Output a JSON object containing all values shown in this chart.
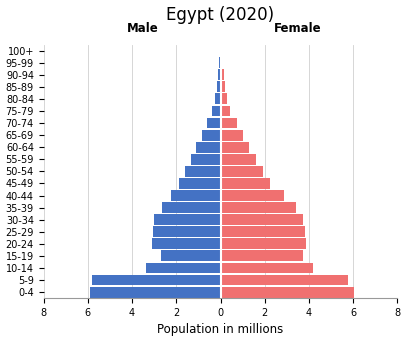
{
  "title": "Egypt (2020)",
  "xlabel": "Population in millions",
  "age_groups": [
    "0-4",
    "5-9",
    "10-14",
    "15-19",
    "20-24",
    "25-29",
    "30-34",
    "35-39",
    "40-44",
    "45-49",
    "50-54",
    "55-59",
    "60-64",
    "65-69",
    "70-74",
    "75-79",
    "80-84",
    "85-89",
    "90-94",
    "95-99",
    "100+"
  ],
  "male": [
    5.9,
    5.8,
    3.35,
    2.7,
    3.1,
    3.05,
    3.0,
    2.65,
    2.25,
    1.9,
    1.6,
    1.35,
    1.1,
    0.85,
    0.62,
    0.38,
    0.25,
    0.17,
    0.12,
    0.05,
    0.02
  ],
  "female": [
    6.05,
    5.75,
    4.2,
    3.75,
    3.85,
    3.8,
    3.75,
    3.4,
    2.85,
    2.25,
    1.9,
    1.6,
    1.3,
    1.0,
    0.75,
    0.45,
    0.28,
    0.2,
    0.14,
    0.07,
    0.03
  ],
  "male_color": "#4472C4",
  "female_color": "#F07070",
  "background_color": "#FFFFFF",
  "grid_color": "#D0D0D0",
  "xlim": 8,
  "bar_height": 0.9,
  "title_fontsize": 12,
  "label_fontsize": 8.5,
  "tick_fontsize": 7,
  "male_label": "Male",
  "female_label": "Female"
}
